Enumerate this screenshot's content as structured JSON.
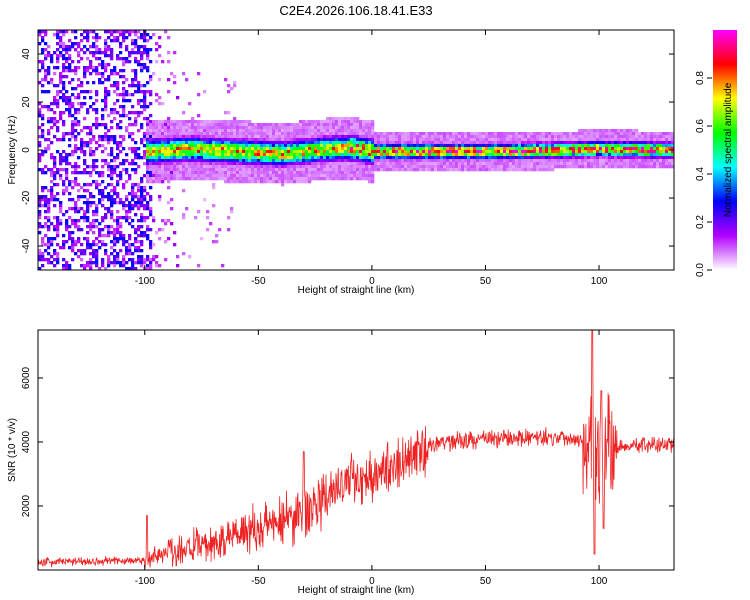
{
  "title": "C2E4.2026.106.18.41.E33",
  "chart_data": [
    {
      "type": "heatmap",
      "name": "spectrogram",
      "xlabel": "Height of straight line (km)",
      "ylabel": "Frequency (Hz)",
      "xlim": [
        -147,
        133
      ],
      "ylim": [
        -50,
        50
      ],
      "xticks": [
        -100,
        -50,
        0,
        50,
        100
      ],
      "yticks": [
        -40,
        -20,
        0,
        20,
        40
      ],
      "grid": false,
      "ridge": [
        {
          "x": -98,
          "f": 0.0
        },
        {
          "x": -80,
          "f": 1.0
        },
        {
          "x": -60,
          "f": 0.0
        },
        {
          "x": -40,
          "f": -1.0
        },
        {
          "x": -20,
          "f": 1.0
        },
        {
          "x": -10,
          "f": 1.5
        },
        {
          "x": 0,
          "f": 0.0
        },
        {
          "x": 20,
          "f": 0.0
        },
        {
          "x": 60,
          "f": 0.0
        },
        {
          "x": 100,
          "f": 1.0
        },
        {
          "x": 133,
          "f": 0.5
        }
      ],
      "colorbar": {
        "label": "Normalized spectral amplitude",
        "range": [
          0,
          1
        ],
        "ticks": [
          0.0,
          0.2,
          0.4,
          0.6,
          0.8
        ],
        "tick_labels": [
          "0.0",
          "0.2",
          "0.4",
          "0.6",
          "0.8"
        ],
        "colors": [
          "#ffffff",
          "#b200ff",
          "#0000ff",
          "#00ffff",
          "#00ff00",
          "#ffff00",
          "#ff0000",
          "#ff00ff"
        ]
      }
    },
    {
      "type": "line",
      "name": "snr",
      "xlabel": "Height of straight line (km)",
      "ylabel": "SNR (10 * v/v)",
      "xlim": [
        -147,
        133
      ],
      "ylim": [
        0,
        7500
      ],
      "xticks": [
        -100,
        -50,
        0,
        50,
        100
      ],
      "yticks": [
        2000,
        4000,
        6000
      ],
      "color": "#ee2222",
      "grid": false,
      "trend": [
        {
          "x": -147,
          "y": 250
        },
        {
          "x": -100,
          "y": 300
        },
        {
          "x": -90,
          "y": 600
        },
        {
          "x": -70,
          "y": 800
        },
        {
          "x": -55,
          "y": 1300
        },
        {
          "x": -40,
          "y": 1500
        },
        {
          "x": -25,
          "y": 2000
        },
        {
          "x": -10,
          "y": 2800
        },
        {
          "x": 5,
          "y": 3100
        },
        {
          "x": 20,
          "y": 3600
        },
        {
          "x": 30,
          "y": 4000
        },
        {
          "x": 50,
          "y": 4100
        },
        {
          "x": 80,
          "y": 4150
        },
        {
          "x": 93,
          "y": 4100
        },
        {
          "x": 100,
          "y": 3800
        },
        {
          "x": 110,
          "y": 3850
        },
        {
          "x": 133,
          "y": 3950
        }
      ],
      "spikes": [
        {
          "x": -99,
          "y": 1700
        },
        {
          "x": -30,
          "y": 3700
        },
        {
          "x": 97,
          "y": 7500
        },
        {
          "x": 98,
          "y": 500
        },
        {
          "x": 101,
          "y": 5600
        },
        {
          "x": 102,
          "y": 1300
        }
      ]
    }
  ]
}
